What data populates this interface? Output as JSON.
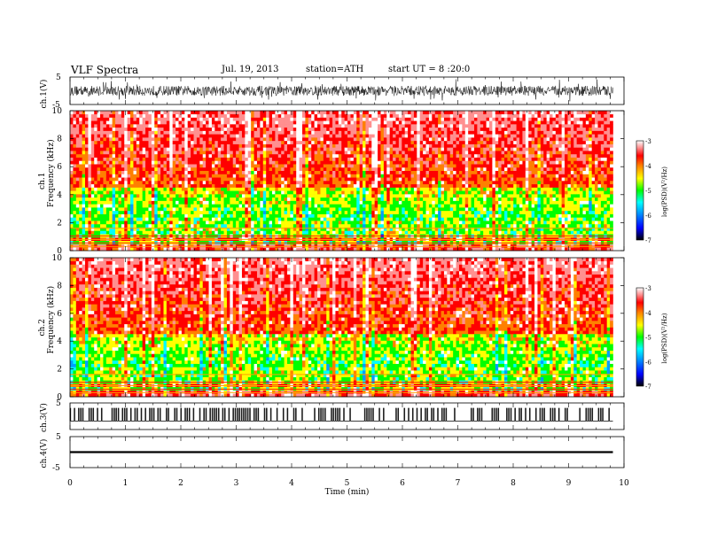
{
  "header": {
    "title": "VLF Spectra",
    "date": "Jul. 19, 2013",
    "station": "station=ATH",
    "start": "start UT = 8 :20:0"
  },
  "chart_data": [
    {
      "type": "line",
      "panel": "ch1",
      "ylabel": "ch.1(V)",
      "ylim": [
        -5,
        5
      ],
      "yticks": [
        "5",
        "-5"
      ],
      "description_values": "dense noisy waveform centered near 0 V, amplitude mostly within ±3 V",
      "x_range_min": [
        0,
        9.8
      ]
    },
    {
      "type": "heatmap",
      "panel": "ch1 spectrogram",
      "ylabel": "ch.1 Frequency (kHz)",
      "ylim": [
        0,
        10
      ],
      "yticks": [
        "0",
        "2",
        "4",
        "6",
        "8",
        "10"
      ],
      "colorbar": {
        "label": "log(PSD)(V²/Hz)",
        "range": [
          -7,
          -3
        ],
        "ticks": [
          "-3",
          "-4",
          "-5",
          "-6",
          "-7"
        ],
        "colors": [
          "#000000",
          "#0000ff",
          "#00a0ff",
          "#00ffff",
          "#00ff00",
          "#ffff00",
          "#ff8000",
          "#ff0000",
          "#ff9090",
          "#ffffff"
        ]
      },
      "summary": "high PSD (red) above ~5 kHz, green/cyan mid levels 1-4 kHz, banded lines below 1 kHz"
    },
    {
      "type": "heatmap",
      "panel": "ch2 spectrogram",
      "ylabel": "ch.2 Frequency (kHz)",
      "ylim": [
        0,
        10
      ],
      "yticks": [
        "0",
        "2",
        "4",
        "6",
        "8",
        "10"
      ],
      "colorbar": {
        "label": "log(PSD)(V²/Hz)",
        "range": [
          -7,
          -3
        ],
        "ticks": [
          "-3",
          "-4",
          "-5",
          "-6",
          "-7"
        ]
      }
    },
    {
      "type": "line",
      "panel": "ch3",
      "ylabel": "ch.3(V)",
      "ylim": [
        -5,
        5
      ],
      "yticks": [
        "5"
      ],
      "description_values": "square-pulse train near 0 V with frequent short spikes"
    },
    {
      "type": "line",
      "panel": "ch4",
      "ylabel": "ch.4(V)",
      "ylim": [
        -5,
        5
      ],
      "yticks": [
        "5",
        "-5"
      ],
      "description_values": "flat line near 0 V"
    },
    {
      "type": "axis",
      "xlabel": "Time (min)",
      "xlim": [
        0,
        10
      ],
      "xticks": [
        "0",
        "1",
        "2",
        "3",
        "4",
        "5",
        "6",
        "7",
        "8",
        "9",
        "10"
      ]
    }
  ]
}
